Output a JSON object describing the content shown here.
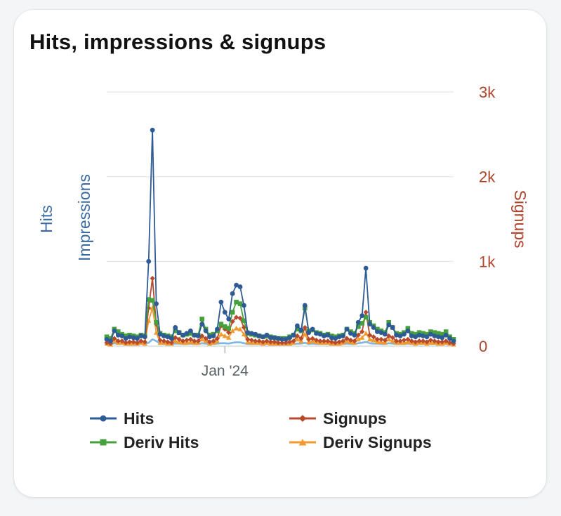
{
  "card": {
    "title": "Hits, impressions & signups"
  },
  "chart_data": {
    "type": "line",
    "title": "Hits, impressions & signups",
    "left_axis_labels": [
      "Hits",
      "Impressions"
    ],
    "right_axis_label": "Signups",
    "x_tick_label": "Jan '24",
    "x_tick_index": 31,
    "ylim": [
      0,
      3000
    ],
    "y_ticks": [
      "0",
      "1k",
      "2k",
      "3k"
    ],
    "grid": true,
    "legend_position": "bottom",
    "colors": {
      "Hits": "#2e5b95",
      "Signups": "#b84a2c",
      "Deriv Hits": "#46a13c",
      "Deriv Signups": "#f29a2e",
      "Impressions": "#7cb6e6",
      "left_axis": "#3a6aa0",
      "right_axis": "#b0442c"
    },
    "series": [
      {
        "name": "Hits",
        "marker": "circle",
        "values": [
          80,
          60,
          180,
          130,
          120,
          90,
          110,
          100,
          90,
          120,
          110,
          1000,
          2550,
          500,
          140,
          120,
          110,
          90,
          220,
          160,
          130,
          150,
          180,
          130,
          120,
          260,
          180,
          110,
          120,
          200,
          520,
          400,
          320,
          620,
          720,
          700,
          480,
          160,
          150,
          140,
          120,
          110,
          130,
          100,
          100,
          90,
          80,
          80,
          100,
          130,
          240,
          190,
          480,
          160,
          200,
          150,
          140,
          120,
          130,
          100,
          90,
          110,
          120,
          200,
          150,
          130,
          280,
          360,
          920,
          260,
          220,
          170,
          160,
          140,
          250,
          220,
          130,
          120,
          140,
          180,
          120,
          110,
          130,
          120,
          110,
          140,
          120,
          110,
          100,
          130,
          90,
          60
        ]
      },
      {
        "name": "Signups",
        "marker": "diamond",
        "values": [
          40,
          30,
          90,
          60,
          60,
          40,
          50,
          50,
          40,
          60,
          50,
          450,
          800,
          260,
          70,
          60,
          50,
          40,
          100,
          80,
          60,
          70,
          80,
          60,
          60,
          120,
          90,
          50,
          60,
          90,
          240,
          200,
          160,
          290,
          340,
          330,
          220,
          80,
          70,
          60,
          60,
          50,
          60,
          50,
          50,
          40,
          40,
          40,
          50,
          60,
          120,
          90,
          220,
          80,
          90,
          70,
          60,
          60,
          60,
          50,
          40,
          50,
          60,
          90,
          70,
          60,
          130,
          170,
          400,
          130,
          110,
          80,
          80,
          70,
          120,
          100,
          60,
          60,
          70,
          80,
          60,
          50,
          60,
          60,
          50,
          70,
          60,
          50,
          50,
          60,
          40,
          30
        ]
      },
      {
        "name": "Deriv Hits",
        "marker": "square",
        "values": [
          110,
          90,
          200,
          170,
          140,
          120,
          130,
          120,
          110,
          130,
          120,
          550,
          540,
          280,
          150,
          130,
          120,
          110,
          180,
          160,
          130,
          140,
          150,
          130,
          130,
          320,
          200,
          130,
          140,
          180,
          260,
          230,
          210,
          400,
          520,
          500,
          300,
          150,
          140,
          130,
          120,
          110,
          120,
          110,
          100,
          90,
          90,
          90,
          110,
          130,
          200,
          180,
          450,
          180,
          190,
          160,
          150,
          130,
          140,
          120,
          110,
          120,
          130,
          200,
          170,
          150,
          230,
          270,
          340,
          280,
          240,
          200,
          180,
          160,
          280,
          220,
          150,
          140,
          160,
          210,
          150,
          140,
          160,
          150,
          140,
          170,
          160,
          150,
          140,
          170,
          110,
          80
        ]
      },
      {
        "name": "Deriv Signups",
        "marker": "triangle",
        "values": [
          30,
          20,
          60,
          40,
          40,
          30,
          30,
          30,
          30,
          40,
          30,
          300,
          450,
          160,
          40,
          40,
          30,
          30,
          60,
          50,
          40,
          40,
          50,
          40,
          40,
          80,
          60,
          30,
          40,
          60,
          140,
          120,
          100,
          180,
          210,
          200,
          140,
          50,
          40,
          40,
          40,
          30,
          40,
          30,
          30,
          30,
          30,
          30,
          30,
          40,
          80,
          60,
          140,
          50,
          60,
          50,
          40,
          40,
          40,
          30,
          30,
          30,
          40,
          60,
          50,
          40,
          80,
          100,
          150,
          80,
          70,
          50,
          50,
          40,
          80,
          60,
          40,
          40,
          40,
          50,
          40,
          30,
          40,
          40,
          30,
          40,
          40,
          30,
          30,
          40,
          30,
          20
        ]
      },
      {
        "name": "Impressions",
        "marker": "none",
        "values": [
          25,
          20,
          35,
          30,
          30,
          25,
          25,
          25,
          25,
          30,
          25,
          40,
          80,
          60,
          30,
          25,
          25,
          20,
          30,
          30,
          25,
          25,
          30,
          25,
          25,
          35,
          30,
          25,
          25,
          30,
          35,
          35,
          30,
          40,
          45,
          45,
          35,
          25,
          25,
          25,
          25,
          20,
          25,
          20,
          20,
          20,
          20,
          20,
          25,
          25,
          30,
          30,
          40,
          25,
          30,
          25,
          25,
          25,
          25,
          20,
          20,
          25,
          25,
          30,
          25,
          25,
          35,
          40,
          50,
          35,
          30,
          30,
          25,
          25,
          35,
          30,
          25,
          25,
          25,
          30,
          25,
          25,
          25,
          25,
          25,
          30,
          25,
          25,
          25,
          25,
          20,
          15
        ]
      }
    ]
  }
}
